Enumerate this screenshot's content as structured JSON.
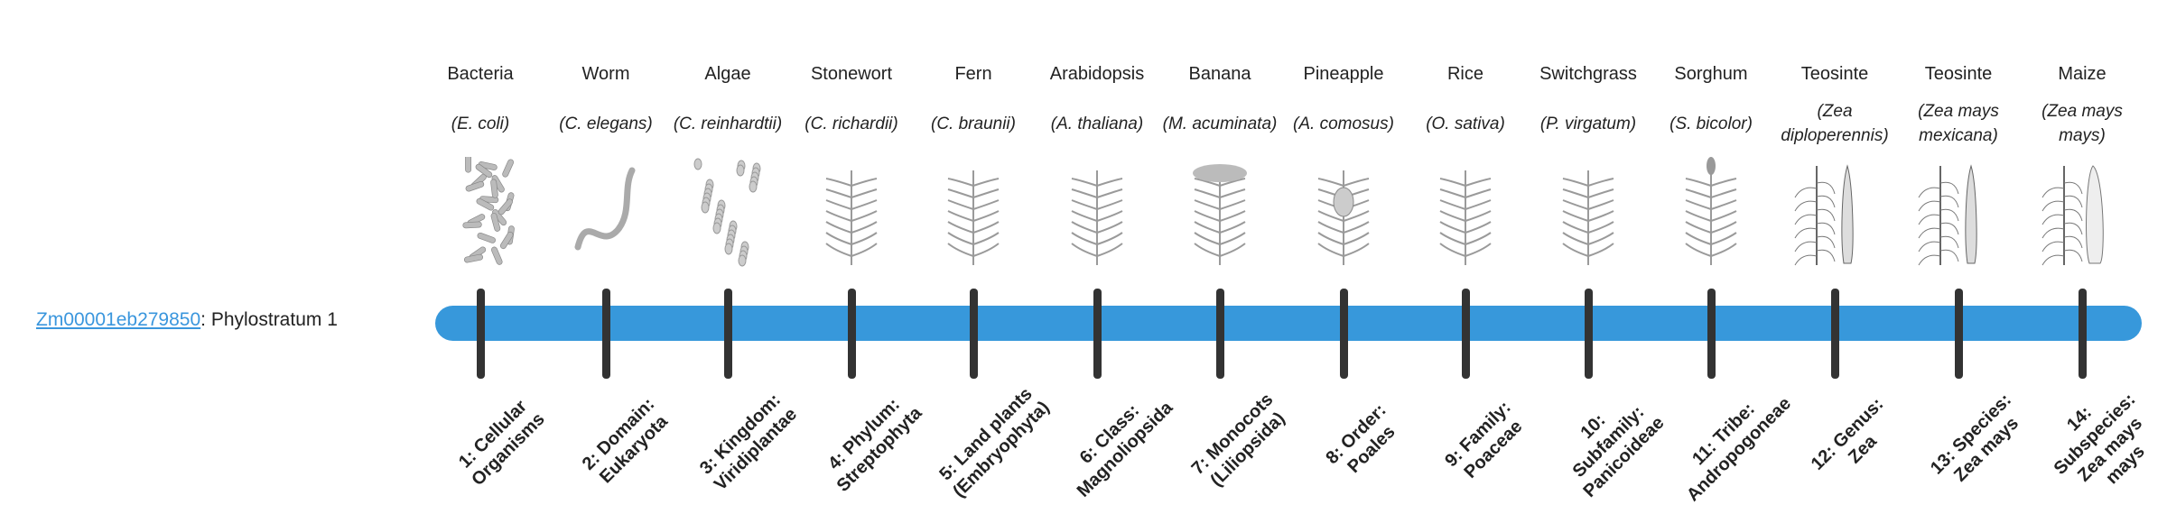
{
  "gene": {
    "id": "Zm00001eb279850",
    "suffix": ": Phylostratum 1"
  },
  "colors": {
    "bar": "#3798db",
    "tick": "#333333",
    "link": "#3a96dd"
  },
  "strata": [
    {
      "common": "Bacteria",
      "scientific": "(E. coli)",
      "rank": "1: Cellular Organisms",
      "icon": "bacteria-icon"
    },
    {
      "common": "Worm",
      "scientific": "(C. elegans)",
      "rank": "2: Domain: Eukaryota",
      "icon": "worm-icon"
    },
    {
      "common": "Algae",
      "scientific": "(C. reinhardtii)",
      "rank": "3: Kingdom: Viridiplantae",
      "icon": "algae-icon"
    },
    {
      "common": "Stonewort",
      "scientific": "(C. richardii)",
      "rank": "4: Phylum: Streptophyta",
      "icon": "stonewort-icon"
    },
    {
      "common": "Fern",
      "scientific": "(C. braunii)",
      "rank": "5: Land plants (Embryophyta)",
      "icon": "fern-icon"
    },
    {
      "common": "Arabidopsis",
      "scientific": "(A. thaliana)",
      "rank": "6: Class: Magnoliopsida",
      "icon": "arabidopsis-icon"
    },
    {
      "common": "Banana",
      "scientific": "(M. acuminata)",
      "rank": "7: Monocots (Liliopsida)",
      "icon": "banana-icon"
    },
    {
      "common": "Pineapple",
      "scientific": "(A. comosus)",
      "rank": "8: Order: Poales",
      "icon": "pineapple-icon"
    },
    {
      "common": "Rice",
      "scientific": "(O. sativa)",
      "rank": "9: Family: Poaceae",
      "icon": "rice-icon"
    },
    {
      "common": "Switchgrass",
      "scientific": "(P. virgatum)",
      "rank": "10: Subfamily: Panicoideae",
      "icon": "switchgrass-icon"
    },
    {
      "common": "Sorghum",
      "scientific": "(S. bicolor)",
      "rank": "11: Tribe: Andropogoneae",
      "icon": "sorghum-icon"
    },
    {
      "common": "Teosinte",
      "scientific": "(Zea diploperennis)",
      "rank": "12: Genus: Zea",
      "icon": "teosinte-icon"
    },
    {
      "common": "Teosinte",
      "scientific": "(Zea mays mexicana)",
      "rank": "13: Species: Zea mays",
      "icon": "teosinte-icon"
    },
    {
      "common": "Maize",
      "scientific": "(Zea mays mays)",
      "rank": "14: Subspecies: Zea mays mays",
      "icon": "maize-icon"
    }
  ]
}
